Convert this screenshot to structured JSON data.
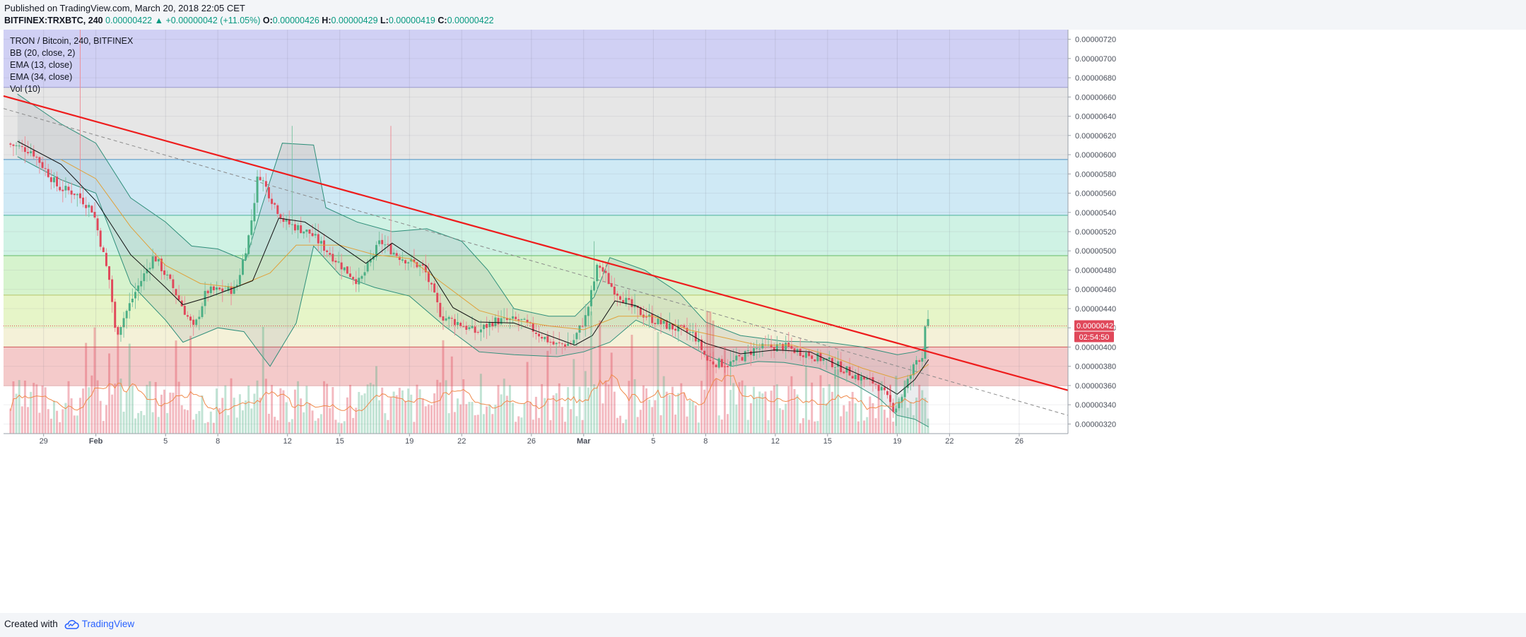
{
  "header": {
    "published": "Published on TradingView.com, March 20, 2018 22:05 CET",
    "symbol": "BITFINEX:TRXBTC, 240",
    "last": "0.00000422",
    "change": "+0.00000042 (+11.05%)",
    "o_label": "O:",
    "o_value": "0.00000426",
    "h_label": "H:",
    "h_value": "0.00000429",
    "l_label": "L:",
    "l_value": "0.00000419",
    "c_label": "C:",
    "c_value": "0.00000422"
  },
  "legend": {
    "title": "TRON / Bitcoin, 240, BITFINEX",
    "items": [
      "BB (20, close, 2)",
      "EMA (13, close)",
      "EMA (34, close)",
      "Vol (10)"
    ]
  },
  "footer": {
    "created": "Created with",
    "brand": "TradingView"
  },
  "colors": {
    "up": "#4caf85",
    "down": "#e0485a",
    "trendline": "#ee1c1c",
    "bb": "#2f8f7a",
    "ema13": "#111111",
    "ema34": "#e0a13a",
    "vol_ma": "#f08a4b"
  },
  "chart_data": {
    "type": "candlestick",
    "symbol": "BITFINEX:TRXBTC",
    "interval": "240",
    "ylim": [
      3.1e-06,
      7.3e-06
    ],
    "y_ticks": [
      "0.00000320",
      "0.00000340",
      "0.00000360",
      "0.00000380",
      "0.00000400",
      "0.00000420",
      "0.00000440",
      "0.00000460",
      "0.00000480",
      "0.00000500",
      "0.00000520",
      "0.00000540",
      "0.00000560",
      "0.00000580",
      "0.00000600",
      "0.00000620",
      "0.00000640",
      "0.00000660",
      "0.00000680",
      "0.00000700",
      "0.00000720"
    ],
    "x_ticks": [
      {
        "label": "29",
        "day": -3
      },
      {
        "label": "Feb",
        "day": 0
      },
      {
        "label": "5",
        "day": 4
      },
      {
        "label": "8",
        "day": 7
      },
      {
        "label": "12",
        "day": 11
      },
      {
        "label": "15",
        "day": 14
      },
      {
        "label": "19",
        "day": 18
      },
      {
        "label": "22",
        "day": 21
      },
      {
        "label": "26",
        "day": 25
      },
      {
        "label": "Mar",
        "day": 28
      },
      {
        "label": "5",
        "day": 32
      },
      {
        "label": "8",
        "day": 35
      },
      {
        "label": "12",
        "day": 39
      },
      {
        "label": "15",
        "day": 42
      },
      {
        "label": "19",
        "day": 46
      },
      {
        "label": "22",
        "day": 49
      },
      {
        "label": "26",
        "day": 53
      }
    ],
    "xlim": [
      -5.3,
      55.8
    ],
    "last_price_label": "0.00000422",
    "countdown_label": "02:54:50",
    "zones": [
      {
        "from": 3.2e-06,
        "to": 4e-06,
        "color": "#f4caca"
      },
      {
        "from": 4e-06,
        "to": 4.2e-06,
        "color": "#f4f1d8"
      },
      {
        "from": 4.2e-06,
        "to": 4.54e-06,
        "color": "#e6f5c8"
      },
      {
        "from": 4.54e-06,
        "to": 4.95e-06,
        "color": "#d6f3cd"
      },
      {
        "from": 4.95e-06,
        "to": 5.37e-06,
        "color": "#cff2e4"
      },
      {
        "from": 5.37e-06,
        "to": 5.95e-06,
        "color": "#cfe9f5"
      },
      {
        "from": 5.95e-06,
        "to": 6.7e-06,
        "color": "#e6e6e6"
      },
      {
        "from": 6.7e-06,
        "to": 7.3e-06,
        "color": "#d0d0f4"
      }
    ],
    "zone_lines": [
      {
        "price": 4e-06,
        "color": "#d05a5a"
      },
      {
        "price": 4.54e-06,
        "color": "#b6c46a"
      },
      {
        "price": 4.95e-06,
        "color": "#66bb66"
      },
      {
        "price": 5.37e-06,
        "color": "#4bb09a"
      },
      {
        "price": 5.95e-06,
        "color": "#4a8fc4"
      },
      {
        "price": 6.7e-06,
        "color": "#9a9acc"
      }
    ],
    "trendline": {
      "x1": -5.3,
      "y1": 6.61e-06,
      "x2": 55.8,
      "y2": 3.55e-06
    },
    "dashed_line": {
      "x1": -5.3,
      "y1": 6.48e-06,
      "x2": 55.8,
      "y2": 3.29e-06
    },
    "bb_upper": [
      [
        -4.5,
        6.63e-06
      ],
      [
        -2,
        6.32e-06
      ],
      [
        0,
        6.12e-06
      ],
      [
        2,
        5.55e-06
      ],
      [
        4,
        5.3e-06
      ],
      [
        5.5,
        5.05e-06
      ],
      [
        7,
        5.02e-06
      ],
      [
        8.6,
        4.9e-06
      ],
      [
        9.5,
        5.45e-06
      ],
      [
        10.7,
        6.12e-06
      ],
      [
        12.5,
        6.1e-06
      ],
      [
        13.2,
        5.45e-06
      ],
      [
        15,
        5.3e-06
      ],
      [
        17,
        5.2e-06
      ],
      [
        19,
        5.23e-06
      ],
      [
        21,
        5.1e-06
      ],
      [
        22.5,
        4.8e-06
      ],
      [
        24,
        4.4e-06
      ],
      [
        26,
        4.32e-06
      ],
      [
        27.5,
        4.32e-06
      ],
      [
        28.6,
        4.52e-06
      ],
      [
        29.5,
        4.93e-06
      ],
      [
        31.5,
        4.8e-06
      ],
      [
        33.5,
        4.56e-06
      ],
      [
        35,
        4.26e-06
      ],
      [
        37,
        4.12e-06
      ],
      [
        39.5,
        4.06e-06
      ],
      [
        42,
        4.05e-06
      ],
      [
        44,
        4e-06
      ],
      [
        46,
        3.92e-06
      ],
      [
        47,
        3.95e-06
      ],
      [
        47.8,
        4e-06
      ]
    ],
    "bb_lower": [
      [
        -4.5,
        5.98e-06
      ],
      [
        -2,
        5.74e-06
      ],
      [
        0,
        5.6e-06
      ],
      [
        2,
        4.66e-06
      ],
      [
        4,
        4.28e-06
      ],
      [
        5,
        4.05e-06
      ],
      [
        7,
        4.2e-06
      ],
      [
        8.5,
        4.16e-06
      ],
      [
        9.4,
        3.94e-06
      ],
      [
        10,
        3.8e-06
      ],
      [
        11.5,
        4.25e-06
      ],
      [
        12.5,
        5.05e-06
      ],
      [
        14,
        4.75e-06
      ],
      [
        16,
        4.62e-06
      ],
      [
        18,
        4.53e-06
      ],
      [
        20,
        4.22e-06
      ],
      [
        22,
        3.95e-06
      ],
      [
        24,
        3.92e-06
      ],
      [
        26.5,
        3.9e-06
      ],
      [
        28,
        3.95e-06
      ],
      [
        29.5,
        4.05e-06
      ],
      [
        31,
        4.28e-06
      ],
      [
        33,
        4.12e-06
      ],
      [
        35,
        3.92e-06
      ],
      [
        36.5,
        3.8e-06
      ],
      [
        38,
        3.85e-06
      ],
      [
        39.5,
        3.84e-06
      ],
      [
        41.5,
        3.78e-06
      ],
      [
        43.5,
        3.62e-06
      ],
      [
        45,
        3.46e-06
      ],
      [
        46,
        3.29e-06
      ],
      [
        47,
        3.25e-06
      ],
      [
        47.8,
        3.17e-06
      ]
    ],
    "ema13": [
      [
        -4.5,
        6.14e-06
      ],
      [
        -2,
        5.9e-06
      ],
      [
        0,
        5.52e-06
      ],
      [
        2,
        4.96e-06
      ],
      [
        4,
        4.62e-06
      ],
      [
        5,
        4.44e-06
      ],
      [
        6.5,
        4.52e-06
      ],
      [
        8,
        4.62e-06
      ],
      [
        9,
        4.69e-06
      ],
      [
        10.5,
        5.34e-06
      ],
      [
        12,
        5.3e-06
      ],
      [
        13.5,
        5.12e-06
      ],
      [
        15.5,
        4.87e-06
      ],
      [
        17,
        5.08e-06
      ],
      [
        19,
        4.84e-06
      ],
      [
        20.5,
        4.41e-06
      ],
      [
        22,
        4.26e-06
      ],
      [
        24,
        4.25e-06
      ],
      [
        26,
        4.12e-06
      ],
      [
        27.5,
        4.02e-06
      ],
      [
        28.5,
        4.12e-06
      ],
      [
        29.8,
        4.48e-06
      ],
      [
        31,
        4.43e-06
      ],
      [
        33,
        4.25e-06
      ],
      [
        35,
        4.04e-06
      ],
      [
        37,
        3.93e-06
      ],
      [
        39,
        3.97e-06
      ],
      [
        41,
        3.95e-06
      ],
      [
        43,
        3.78e-06
      ],
      [
        45,
        3.62e-06
      ],
      [
        46,
        3.51e-06
      ],
      [
        47,
        3.66e-06
      ],
      [
        47.8,
        3.87e-06
      ]
    ],
    "ema34": [
      [
        -2,
        5.95e-06
      ],
      [
        0,
        5.75e-06
      ],
      [
        2,
        5.25e-06
      ],
      [
        4,
        4.85e-06
      ],
      [
        6,
        4.66e-06
      ],
      [
        8,
        4.62e-06
      ],
      [
        10,
        4.77e-06
      ],
      [
        11.5,
        5.06e-06
      ],
      [
        14,
        5.06e-06
      ],
      [
        16,
        4.96e-06
      ],
      [
        18,
        4.92e-06
      ],
      [
        20,
        4.65e-06
      ],
      [
        22,
        4.38e-06
      ],
      [
        24,
        4.28e-06
      ],
      [
        26,
        4.22e-06
      ],
      [
        28,
        4.18e-06
      ],
      [
        30,
        4.32e-06
      ],
      [
        32,
        4.32e-06
      ],
      [
        34,
        4.18e-06
      ],
      [
        36,
        4.1e-06
      ],
      [
        38,
        4.02e-06
      ],
      [
        40,
        4.02e-06
      ],
      [
        42,
        3.92e-06
      ],
      [
        44,
        3.78e-06
      ],
      [
        46,
        3.67e-06
      ],
      [
        47,
        3.72e-06
      ],
      [
        47.8,
        3.82e-06
      ]
    ],
    "candle_anchors": [
      [
        -5,
        6.12e-06
      ],
      [
        -3.5,
        6.04e-06
      ],
      [
        -2,
        5.66e-06
      ],
      [
        -1,
        5.6e-06
      ],
      [
        0,
        5.42e-06
      ],
      [
        1,
        4.65e-06
      ],
      [
        1.3,
        4.12e-06
      ],
      [
        2.5,
        4.6e-06
      ],
      [
        3.5,
        4.95e-06
      ],
      [
        4.5,
        4.65e-06
      ],
      [
        5.8,
        4.18e-06
      ],
      [
        6.5,
        4.58e-06
      ],
      [
        8.2,
        4.6e-06
      ],
      [
        9,
        5.2e-06
      ],
      [
        9.5,
        5.82e-06
      ],
      [
        10.3,
        5.52e-06
      ],
      [
        11,
        5.3e-06
      ],
      [
        12.5,
        5.18e-06
      ],
      [
        14.5,
        4.8e-06
      ],
      [
        15.3,
        4.67e-06
      ],
      [
        16.5,
        5.1e-06
      ],
      [
        17.5,
        4.95e-06
      ],
      [
        19,
        4.82e-06
      ],
      [
        20,
        4.32e-06
      ],
      [
        21,
        4.25e-06
      ],
      [
        22,
        4.15e-06
      ],
      [
        23,
        4.27e-06
      ],
      [
        24.5,
        4.28e-06
      ],
      [
        26.5,
        4.02e-06
      ],
      [
        27.5,
        4.04e-06
      ],
      [
        28.3,
        4.32e-06
      ],
      [
        29,
        4.87e-06
      ],
      [
        29.8,
        4.62e-06
      ],
      [
        31,
        4.4e-06
      ],
      [
        32.5,
        4.25e-06
      ],
      [
        34.5,
        4.13e-06
      ],
      [
        35.3,
        3.85e-06
      ],
      [
        36.5,
        3.82e-06
      ],
      [
        38,
        3.98e-06
      ],
      [
        39.5,
        4.01e-06
      ],
      [
        41,
        3.93e-06
      ],
      [
        42.5,
        3.83e-06
      ],
      [
        44,
        3.68e-06
      ],
      [
        45,
        3.62e-06
      ],
      [
        46,
        3.35e-06
      ],
      [
        46.5,
        3.52e-06
      ],
      [
        47.3,
        3.88e-06
      ],
      [
        47.6,
        3.9e-06
      ],
      [
        47.75,
        4.25e-06
      ]
    ],
    "volume_max": 1.0,
    "volume_spikes": [
      [
        1.2,
        0.78
      ],
      [
        1.9,
        0.7
      ],
      [
        5.5,
        0.76
      ],
      [
        9.6,
        0.83
      ],
      [
        20.5,
        0.6
      ],
      [
        27.5,
        0.58
      ],
      [
        28.4,
        0.95
      ],
      [
        28.9,
        0.88
      ],
      [
        35.2,
        0.95
      ],
      [
        35.4,
        0.88
      ],
      [
        42.5,
        0.5
      ],
      [
        45.9,
        0.45
      ]
    ]
  }
}
